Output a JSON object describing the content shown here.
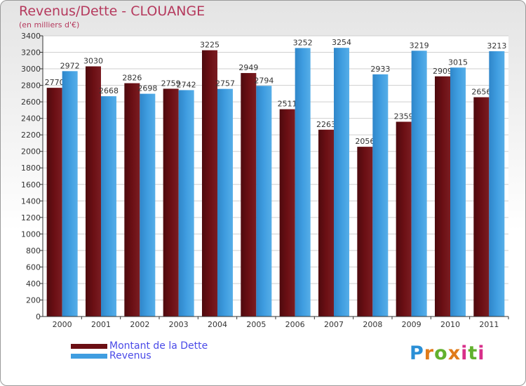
{
  "header": {
    "title": "Revenus/Dette - CLOUANGE",
    "subtitle": "(en milliers d'€)"
  },
  "legend": {
    "items": [
      {
        "label": "Montant de la Dette",
        "color": "#6b0f14"
      },
      {
        "label": "Revenus",
        "color": "#3f9de0"
      }
    ]
  },
  "logo": {
    "text": "Proxiti"
  },
  "colors": {
    "dette": "#6b0f14",
    "revenus": "#3f9de0",
    "title": "#b5395d",
    "legend_text": "#4a4ae8",
    "grid": "#cfcfcf"
  },
  "chart_data": {
    "type": "bar",
    "title": "Revenus/Dette - CLOUANGE",
    "subtitle": "(en milliers d'€)",
    "xlabel": "",
    "ylabel": "",
    "categories": [
      "2000",
      "2001",
      "2002",
      "2003",
      "2004",
      "2005",
      "2006",
      "2007",
      "2008",
      "2009",
      "2010",
      "2011"
    ],
    "series": [
      {
        "name": "Montant de la Dette",
        "values": [
          2770,
          3030,
          2826,
          2759,
          3225,
          2949,
          2511,
          2263,
          2056,
          2359,
          2909,
          2656
        ]
      },
      {
        "name": "Revenus",
        "values": [
          2972,
          2668,
          2698,
          2742,
          2757,
          2794,
          3252,
          3254,
          2933,
          3219,
          3015,
          3213
        ]
      }
    ],
    "ylim": [
      0,
      3400
    ],
    "yticks": [
      0,
      200,
      400,
      600,
      800,
      1000,
      1200,
      1400,
      1600,
      1800,
      2000,
      2200,
      2400,
      2600,
      2800,
      3000,
      3200,
      3400
    ],
    "grid": true,
    "legend_position": "bottom-left"
  }
}
